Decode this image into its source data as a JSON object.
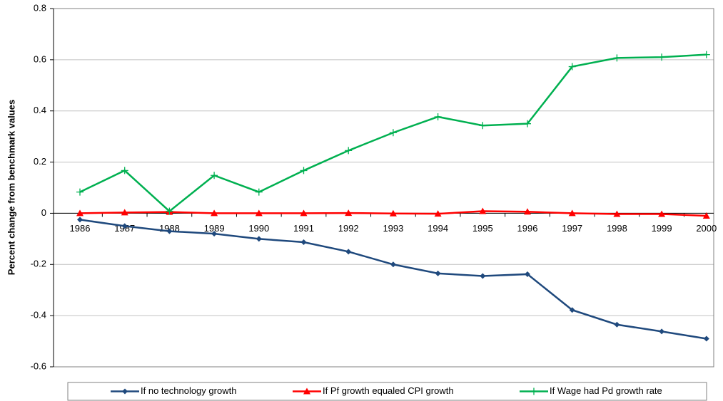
{
  "chart_data": {
    "type": "line",
    "y_label": "Percent change from benchmark values",
    "categories": [
      "1986",
      "1987",
      "1988",
      "1989",
      "1990",
      "1991",
      "1992",
      "1993",
      "1994",
      "1995",
      "1996",
      "1997",
      "1998",
      "1999",
      "2000"
    ],
    "series": [
      {
        "name": "If no technology growth",
        "color": "#1f497d",
        "marker": "diamond",
        "values": [
          -0.025,
          -0.05,
          -0.07,
          -0.08,
          -0.1,
          -0.113,
          -0.15,
          -0.2,
          -0.235,
          -0.245,
          -0.238,
          -0.378,
          -0.435,
          -0.462,
          -0.49
        ]
      },
      {
        "name": "If Pf growth equaled CPI growth",
        "color": "#ff0000",
        "marker": "triangle",
        "values": [
          0,
          0.003,
          0.005,
          0,
          0,
          0,
          0.001,
          -0.001,
          -0.002,
          0.008,
          0.006,
          0,
          -0.003,
          -0.003,
          -0.01
        ]
      },
      {
        "name": "If Wage had Pd growth rate",
        "color": "#00b050",
        "marker": "plus",
        "values": [
          0.083,
          0.167,
          0.008,
          0.148,
          0.083,
          0.167,
          0.245,
          0.315,
          0.377,
          0.343,
          0.35,
          0.573,
          0.607,
          0.61,
          0.62
        ]
      }
    ],
    "ylim": [
      -0.6,
      0.8
    ],
    "yticks": [
      -0.6,
      -0.4,
      -0.2,
      0,
      0.2,
      0.4,
      0.6,
      0.8
    ],
    "grid": true,
    "legend": "bottom"
  }
}
